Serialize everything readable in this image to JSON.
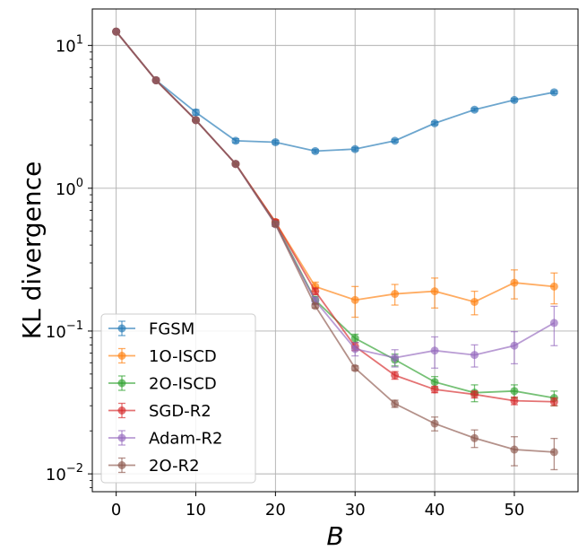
{
  "chart_data": {
    "type": "line",
    "title": "",
    "xlabel": "B",
    "ylabel": "KL divergence",
    "yscale": "log",
    "xlim": [
      -3,
      58
    ],
    "ylim": [
      0.0075,
      18
    ],
    "grid": true,
    "legend_position": "lower-left",
    "x_ticks": [
      0,
      10,
      20,
      30,
      40,
      50
    ],
    "x_tick_labels": [
      "0",
      "10",
      "20",
      "30",
      "40",
      "50"
    ],
    "y_ticks": [
      0.01,
      0.1,
      1,
      10
    ],
    "y_tick_labels": [
      {
        "base": "10",
        "exp": "−2"
      },
      {
        "base": "10",
        "exp": "−1"
      },
      {
        "base": "10",
        "exp": "0"
      },
      {
        "base": "10",
        "exp": "1"
      }
    ],
    "x": [
      0,
      5,
      10,
      15,
      20,
      25,
      30,
      35,
      40,
      45,
      50,
      55
    ],
    "series": [
      {
        "name": "FGSM",
        "color": "#1f77b4",
        "values": [
          12.5,
          5.7,
          3.4,
          2.15,
          2.1,
          1.82,
          1.88,
          2.15,
          2.85,
          3.55,
          4.15,
          4.7
        ],
        "err": [
          0,
          0,
          0.15,
          0.07,
          0.06,
          0.05,
          0.05,
          0.05,
          0.07,
          0.08,
          0.1,
          0.1
        ]
      },
      {
        "name": "1O-ISCD",
        "color": "#ff7f0e",
        "values": [
          12.5,
          5.7,
          3.0,
          1.48,
          0.58,
          0.205,
          0.165,
          0.182,
          0.19,
          0.16,
          0.218,
          0.205
        ],
        "err": [
          0,
          0,
          0.05,
          0.02,
          0.02,
          0.015,
          0.04,
          0.03,
          0.045,
          0.03,
          0.05,
          0.05
        ]
      },
      {
        "name": "2O-ISCD",
        "color": "#2ca02c",
        "values": [
          12.5,
          5.7,
          3.0,
          1.48,
          0.57,
          0.165,
          0.089,
          0.063,
          0.044,
          0.037,
          0.038,
          0.034
        ],
        "err": [
          0,
          0,
          0.05,
          0.02,
          0.02,
          0.01,
          0.006,
          0.006,
          0.004,
          0.005,
          0.004,
          0.004
        ]
      },
      {
        "name": "SGD-R2",
        "color": "#d62728",
        "values": [
          12.5,
          5.7,
          3.0,
          1.48,
          0.58,
          0.19,
          0.078,
          0.049,
          0.039,
          0.036,
          0.0325,
          0.032
        ],
        "err": [
          0,
          0,
          0.05,
          0.02,
          0.02,
          0.01,
          0.005,
          0.003,
          0.002,
          0.002,
          0.002,
          0.002
        ]
      },
      {
        "name": "Adam-R2",
        "color": "#9467bd",
        "values": [
          12.5,
          5.7,
          3.0,
          1.48,
          0.56,
          0.163,
          0.075,
          0.065,
          0.073,
          0.068,
          0.079,
          0.114
        ],
        "err": [
          0,
          0,
          0.05,
          0.02,
          0.02,
          0.01,
          0.008,
          0.009,
          0.018,
          0.012,
          0.02,
          0.035
        ]
      },
      {
        "name": "2O-R2",
        "color": "#8c564b",
        "values": [
          12.5,
          5.7,
          3.0,
          1.48,
          0.56,
          0.15,
          0.055,
          0.031,
          0.0225,
          0.0178,
          0.0148,
          0.0142
        ],
        "err": [
          0,
          0,
          0.05,
          0.02,
          0.02,
          0.005,
          0.002,
          0.0018,
          0.0025,
          0.0025,
          0.0034,
          0.0035
        ]
      }
    ]
  }
}
